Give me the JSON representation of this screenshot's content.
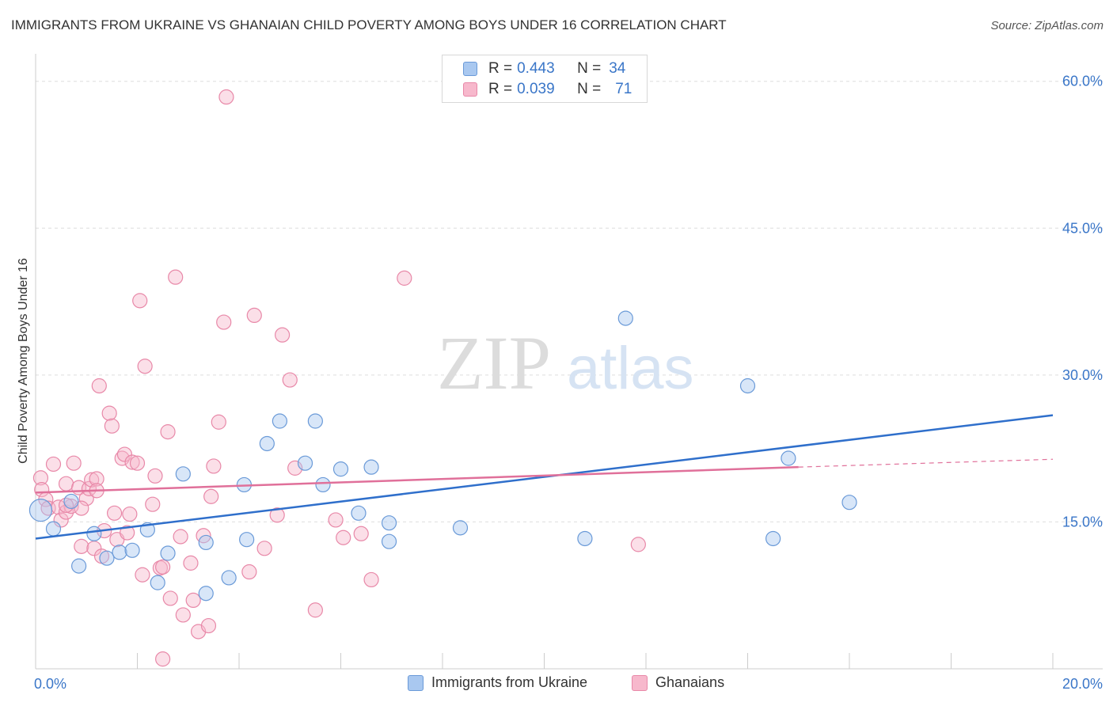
{
  "title": "IMMIGRANTS FROM UKRAINE VS GHANAIAN CHILD POVERTY AMONG BOYS UNDER 16 CORRELATION CHART",
  "source": "Source: ZipAtlas.com",
  "watermark": {
    "zip": "ZIP",
    "atlas": "atlas"
  },
  "colors": {
    "blue_fill": "#a9c8f0",
    "blue_stroke": "#6a9ad8",
    "blue_line": "#2f6fcb",
    "pink_fill": "#f7b8cc",
    "pink_stroke": "#e888a8",
    "pink_line": "#e0709a",
    "axis_label": "#3a76c8"
  },
  "legend": {
    "rows": [
      {
        "r_label": "R =",
        "r_value": "0.443",
        "n_label": "N =",
        "n_value": "34",
        "color": "blue"
      },
      {
        "r_label": "R =",
        "r_value": "0.039",
        "n_label": "N =",
        "n_value": "71",
        "color": "pink"
      }
    ]
  },
  "bottom_legend": [
    {
      "label": "Immigrants from Ukraine",
      "color": "blue"
    },
    {
      "label": "Ghanaians",
      "color": "pink"
    }
  ],
  "chart_data": {
    "type": "scatter",
    "title": "IMMIGRANTS FROM UKRAINE VS GHANAIAN CHILD POVERTY AMONG BOYS UNDER 16 CORRELATION CHART",
    "xlabel": "",
    "ylabel": "Child Poverty Among Boys Under 16",
    "xlim": [
      0,
      20
    ],
    "ylim": [
      0,
      62
    ],
    "x_tick_labels": [
      {
        "value": 0,
        "label": "0.0%"
      },
      {
        "value": 20,
        "label": "20.0%"
      }
    ],
    "y_tick_labels": [
      {
        "value": 15,
        "label": "15.0%"
      },
      {
        "value": 30,
        "label": "30.0%"
      },
      {
        "value": 45,
        "label": "45.0%"
      },
      {
        "value": 60,
        "label": "60.0%"
      }
    ],
    "grid": true,
    "legend_position": "top-center",
    "series": [
      {
        "name": "Immigrants from Ukraine",
        "color": "blue",
        "points": [
          [
            0.1,
            16.2
          ],
          [
            0.35,
            14.3
          ],
          [
            0.7,
            17.1
          ],
          [
            0.85,
            10.5
          ],
          [
            1.15,
            13.8
          ],
          [
            1.4,
            11.3
          ],
          [
            1.65,
            11.9
          ],
          [
            1.9,
            12.1
          ],
          [
            2.2,
            14.2
          ],
          [
            2.4,
            8.8
          ],
          [
            2.6,
            11.8
          ],
          [
            2.9,
            19.9
          ],
          [
            3.35,
            7.7
          ],
          [
            3.35,
            12.9
          ],
          [
            3.8,
            9.3
          ],
          [
            4.15,
            13.2
          ],
          [
            4.1,
            18.8
          ],
          [
            4.55,
            23.0
          ],
          [
            4.8,
            25.3
          ],
          [
            5.3,
            21.0
          ],
          [
            5.5,
            25.3
          ],
          [
            5.65,
            18.8
          ],
          [
            6.0,
            20.4
          ],
          [
            6.35,
            15.9
          ],
          [
            6.6,
            20.6
          ],
          [
            6.95,
            14.9
          ],
          [
            6.95,
            13.0
          ],
          [
            8.35,
            14.4
          ],
          [
            10.8,
            13.3
          ],
          [
            11.6,
            35.8
          ],
          [
            14.0,
            28.9
          ],
          [
            14.5,
            13.3
          ],
          [
            14.8,
            21.5
          ],
          [
            16.0,
            17.0
          ]
        ],
        "trendline": {
          "x": [
            0,
            20
          ],
          "y": [
            13.3,
            25.9
          ]
        }
      },
      {
        "name": "Ghanaians",
        "color": "pink",
        "points": [
          [
            0.1,
            19.5
          ],
          [
            0.12,
            18.3
          ],
          [
            0.2,
            17.3
          ],
          [
            0.25,
            16.4
          ],
          [
            0.35,
            20.9
          ],
          [
            0.45,
            16.5
          ],
          [
            0.5,
            15.2
          ],
          [
            0.6,
            18.9
          ],
          [
            0.6,
            16.0
          ],
          [
            0.7,
            16.6
          ],
          [
            0.75,
            21.0
          ],
          [
            0.85,
            18.5
          ],
          [
            0.9,
            12.5
          ],
          [
            1.0,
            17.4
          ],
          [
            1.05,
            18.4
          ],
          [
            1.1,
            19.3
          ],
          [
            1.15,
            12.3
          ],
          [
            1.2,
            19.4
          ],
          [
            1.25,
            28.9
          ],
          [
            1.3,
            11.5
          ],
          [
            1.35,
            14.1
          ],
          [
            1.45,
            26.1
          ],
          [
            1.5,
            24.8
          ],
          [
            1.55,
            15.9
          ],
          [
            1.6,
            13.2
          ],
          [
            1.7,
            21.5
          ],
          [
            1.75,
            21.9
          ],
          [
            1.8,
            13.9
          ],
          [
            1.85,
            15.8
          ],
          [
            1.9,
            21.1
          ],
          [
            2.0,
            21.0
          ],
          [
            2.05,
            37.6
          ],
          [
            2.1,
            9.6
          ],
          [
            2.15,
            30.9
          ],
          [
            2.3,
            16.8
          ],
          [
            2.35,
            19.7
          ],
          [
            2.45,
            10.3
          ],
          [
            2.5,
            10.4
          ],
          [
            2.5,
            1.0
          ],
          [
            2.6,
            24.2
          ],
          [
            2.65,
            7.2
          ],
          [
            2.75,
            40.0
          ],
          [
            2.85,
            13.5
          ],
          [
            2.9,
            5.5
          ],
          [
            3.05,
            10.8
          ],
          [
            3.1,
            7.0
          ],
          [
            3.2,
            3.8
          ],
          [
            3.3,
            13.6
          ],
          [
            3.4,
            4.4
          ],
          [
            3.45,
            17.6
          ],
          [
            3.5,
            20.7
          ],
          [
            3.6,
            25.2
          ],
          [
            3.7,
            35.4
          ],
          [
            3.75,
            58.4
          ],
          [
            4.2,
            9.9
          ],
          [
            4.3,
            36.1
          ],
          [
            4.5,
            12.3
          ],
          [
            4.75,
            15.7
          ],
          [
            4.85,
            34.1
          ],
          [
            5.0,
            29.5
          ],
          [
            5.1,
            20.5
          ],
          [
            5.5,
            6.0
          ],
          [
            5.9,
            15.2
          ],
          [
            6.05,
            13.4
          ],
          [
            6.4,
            13.8
          ],
          [
            6.6,
            9.1
          ],
          [
            7.25,
            39.9
          ],
          [
            11.85,
            12.7
          ],
          [
            0.6,
            16.7
          ],
          [
            0.9,
            16.4
          ],
          [
            1.2,
            18.2
          ]
        ],
        "trendline": {
          "x": [
            0,
            15
          ],
          "y": [
            18.0,
            20.6
          ]
        },
        "trendline_dashed": {
          "x": [
            15,
            20
          ],
          "y": [
            20.6,
            21.4
          ]
        }
      }
    ]
  }
}
